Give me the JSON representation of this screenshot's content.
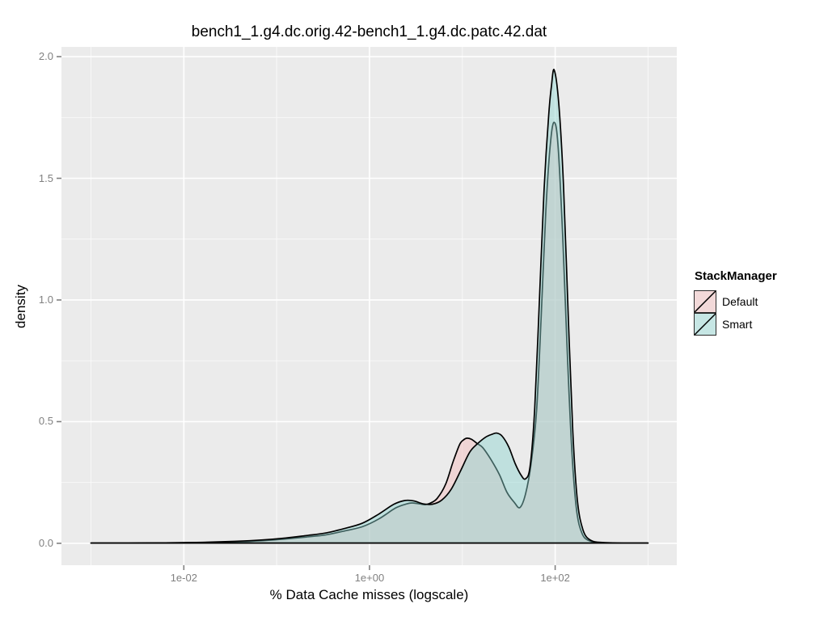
{
  "title": "bench1_1.g4.dc.orig.42-bench1_1.g4.dc.patc.42.dat",
  "colors": {
    "page_bg": "#FFFFFF",
    "panel_bg": "#EBEBEB",
    "grid_major": "#FFFFFF",
    "grid_minor": "#FFFFFF",
    "axis_text": "#808080",
    "tick_mark": "#808080",
    "curve_stroke": "#000000"
  },
  "chart_data": {
    "type": "area",
    "subtype": "density",
    "title": "bench1_1.g4.dc.orig.42-bench1_1.g4.dc.patc.42.dat",
    "xlabel": "% Data Cache misses (logscale)",
    "ylabel": "density",
    "grid": {
      "major": true,
      "minor": true
    },
    "x_axis": {
      "scale": "log10",
      "domain_log10": [
        -3.318,
        3.31
      ],
      "ticks": [
        {
          "value": 0.01,
          "log10": -2,
          "label": "1e-02"
        },
        {
          "value": 1.0,
          "log10": 0,
          "label": "1e+00"
        },
        {
          "value": 100.0,
          "log10": 2,
          "label": "1e+02"
        }
      ],
      "minor_log10": [
        -3,
        -1,
        1,
        3
      ]
    },
    "y_axis": {
      "domain": [
        -0.09,
        2.04
      ],
      "ticks": [
        {
          "value": 0.0,
          "label": "0.0"
        },
        {
          "value": 0.5,
          "label": "0.5"
        },
        {
          "value": 1.0,
          "label": "1.0"
        },
        {
          "value": 1.5,
          "label": "1.5"
        },
        {
          "value": 2.0,
          "label": "2.0"
        }
      ],
      "minor": [
        0.25,
        0.75,
        1.25,
        1.75
      ]
    },
    "legend": {
      "title": "StackManager",
      "position": "right",
      "entries": [
        {
          "label": "Default",
          "swatch_fill": "#F2D9D9",
          "swatch_line": "#000000"
        },
        {
          "label": "Smart",
          "swatch_fill": "#C6E6E4",
          "swatch_line": "#000000"
        }
      ]
    },
    "series": [
      {
        "name": "Default",
        "fill": "rgba(244,186,186,0.45)",
        "stroke": "#000000",
        "points_log10x_density": [
          [
            -3.0,
            0.001
          ],
          [
            -2.6,
            0.001
          ],
          [
            -2.2,
            0.002
          ],
          [
            -1.8,
            0.003
          ],
          [
            -1.45,
            0.006
          ],
          [
            -1.15,
            0.011
          ],
          [
            -0.9,
            0.018
          ],
          [
            -0.68,
            0.026
          ],
          [
            -0.48,
            0.034
          ],
          [
            -0.28,
            0.05
          ],
          [
            -0.08,
            0.068
          ],
          [
            0.1,
            0.1
          ],
          [
            0.28,
            0.145
          ],
          [
            0.4,
            0.162
          ],
          [
            0.46,
            0.166
          ],
          [
            0.54,
            0.162
          ],
          [
            0.6,
            0.159
          ],
          [
            0.66,
            0.166
          ],
          [
            0.73,
            0.185
          ],
          [
            0.82,
            0.243
          ],
          [
            0.9,
            0.335
          ],
          [
            0.97,
            0.405
          ],
          [
            1.01,
            0.424
          ],
          [
            1.05,
            0.432
          ],
          [
            1.1,
            0.427
          ],
          [
            1.16,
            0.41
          ],
          [
            1.22,
            0.393
          ],
          [
            1.31,
            0.343
          ],
          [
            1.4,
            0.282
          ],
          [
            1.48,
            0.21
          ],
          [
            1.56,
            0.168
          ],
          [
            1.62,
            0.147
          ],
          [
            1.68,
            0.202
          ],
          [
            1.74,
            0.325
          ],
          [
            1.8,
            0.545
          ],
          [
            1.85,
            0.94
          ],
          [
            1.9,
            1.37
          ],
          [
            1.95,
            1.65
          ],
          [
            1.99,
            1.73
          ],
          [
            2.03,
            1.64
          ],
          [
            2.08,
            1.27
          ],
          [
            2.13,
            0.79
          ],
          [
            2.18,
            0.375
          ],
          [
            2.23,
            0.138
          ],
          [
            2.29,
            0.04
          ],
          [
            2.37,
            0.01
          ],
          [
            2.5,
            0.002
          ],
          [
            2.75,
            0.001
          ],
          [
            3.0,
            0.001
          ]
        ]
      },
      {
        "name": "Smart",
        "fill": "rgba(137,211,206,0.45)",
        "stroke": "#000000",
        "points_log10x_density": [
          [
            -3.0,
            0.001
          ],
          [
            -2.6,
            0.001
          ],
          [
            -2.2,
            0.002
          ],
          [
            -1.8,
            0.004
          ],
          [
            -1.45,
            0.008
          ],
          [
            -1.15,
            0.014
          ],
          [
            -0.9,
            0.022
          ],
          [
            -0.68,
            0.032
          ],
          [
            -0.48,
            0.042
          ],
          [
            -0.28,
            0.06
          ],
          [
            -0.08,
            0.082
          ],
          [
            0.1,
            0.12
          ],
          [
            0.26,
            0.16
          ],
          [
            0.38,
            0.176
          ],
          [
            0.48,
            0.174
          ],
          [
            0.58,
            0.162
          ],
          [
            0.68,
            0.161
          ],
          [
            0.78,
            0.178
          ],
          [
            0.88,
            0.222
          ],
          [
            0.98,
            0.297
          ],
          [
            1.08,
            0.375
          ],
          [
            1.16,
            0.408
          ],
          [
            1.25,
            0.436
          ],
          [
            1.32,
            0.448
          ],
          [
            1.37,
            0.453
          ],
          [
            1.43,
            0.44
          ],
          [
            1.5,
            0.396
          ],
          [
            1.57,
            0.327
          ],
          [
            1.63,
            0.282
          ],
          [
            1.68,
            0.265
          ],
          [
            1.73,
            0.317
          ],
          [
            1.78,
            0.555
          ],
          [
            1.83,
            1.0
          ],
          [
            1.88,
            1.45
          ],
          [
            1.93,
            1.76
          ],
          [
            1.96,
            1.88
          ],
          [
            1.99,
            1.945
          ],
          [
            2.04,
            1.8
          ],
          [
            2.09,
            1.47
          ],
          [
            2.14,
            0.94
          ],
          [
            2.19,
            0.46
          ],
          [
            2.24,
            0.175
          ],
          [
            2.3,
            0.055
          ],
          [
            2.38,
            0.013
          ],
          [
            2.52,
            0.003
          ],
          [
            2.8,
            0.001
          ],
          [
            3.0,
            0.001
          ]
        ]
      }
    ]
  }
}
